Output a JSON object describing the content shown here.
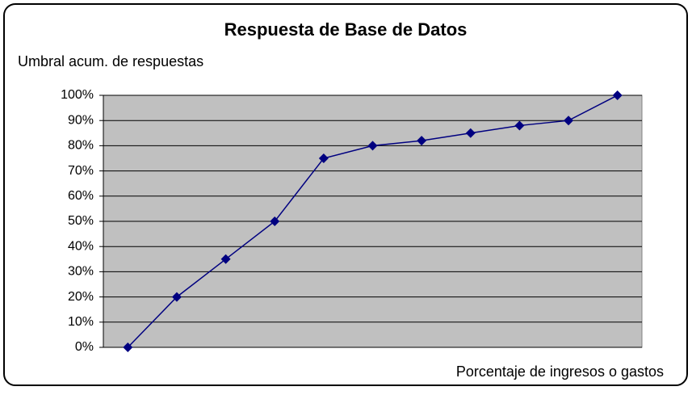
{
  "chart_data": {
    "type": "line",
    "title": "Respuesta de Base de Datos",
    "y_label": "Umbral acum. de respuestas",
    "x_label": "Porcentaje de ingresos o gastos",
    "categories": [
      null,
      null,
      null,
      null,
      null,
      null,
      null,
      null,
      null,
      null,
      null
    ],
    "series": [
      {
        "name": null,
        "color": "#000080",
        "values": [
          0,
          20,
          35,
          50,
          75,
          80,
          82,
          85,
          88,
          90,
          100
        ]
      }
    ],
    "ylim": [
      0,
      100
    ],
    "yticks": [
      {
        "value": 0,
        "label": "0%"
      },
      {
        "value": 10,
        "label": "10%"
      },
      {
        "value": 20,
        "label": "20%"
      },
      {
        "value": 30,
        "label": "30%"
      },
      {
        "value": 40,
        "label": "40%"
      },
      {
        "value": 50,
        "label": "50%"
      },
      {
        "value": 60,
        "label": "60%"
      },
      {
        "value": 70,
        "label": "70%"
      },
      {
        "value": 80,
        "label": "80%"
      },
      {
        "value": 90,
        "label": "90%"
      },
      {
        "value": 100,
        "label": "100%"
      }
    ],
    "grid": true,
    "plot_background": "#c0c0c0",
    "marker": "diamond"
  }
}
